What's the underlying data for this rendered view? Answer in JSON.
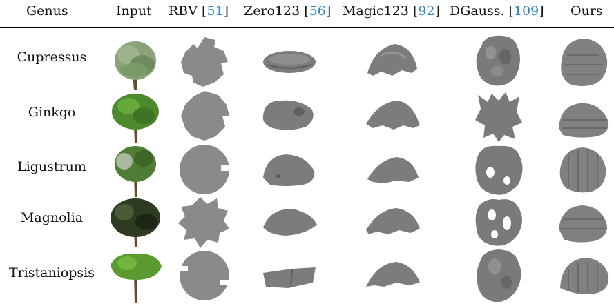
{
  "header": {
    "genus": "Genus",
    "input": "Input",
    "rbv": "RBV [",
    "rbv_cite": "51",
    "zero": "Zero123 [",
    "zero_cite": "56",
    "magic": "Magic123 [",
    "magic_cite": "92",
    "dgauss": "DGauss. [",
    "dgauss_cite": "109",
    "ours": "Ours",
    "close": "]"
  },
  "rows": [
    {
      "genus": "Cupressus"
    },
    {
      "genus": "Ginkgo"
    },
    {
      "genus": "Ligustrum"
    },
    {
      "genus": "Magnolia"
    },
    {
      "genus": "Tristaniopsis"
    }
  ],
  "colors": {
    "mesh_gray": "#7c7c7c",
    "rbv_gray": "#8a8a8a",
    "citation_blue": "#2e86c1",
    "foliage_green": "#4c8a2c"
  }
}
